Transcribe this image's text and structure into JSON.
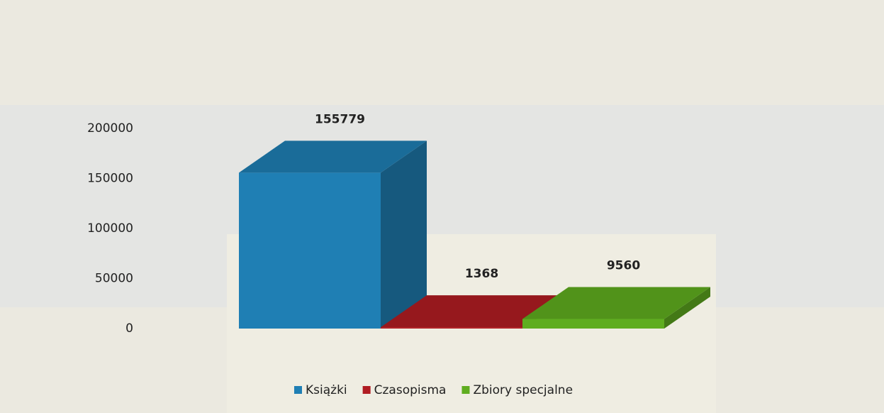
{
  "chart_data": {
    "type": "bar3d",
    "series": [
      {
        "name": "Książki",
        "color": "#1f7fb4",
        "values": [
          155779
        ]
      },
      {
        "name": "Czasopisma",
        "color": "#b01c22",
        "values": [
          1368
        ]
      },
      {
        "name": "Zbiory specjalne",
        "color": "#5fad1f",
        "values": [
          9560
        ]
      }
    ],
    "ylim": [
      0,
      200000
    ],
    "yticks": [
      0,
      50000,
      100000,
      150000,
      200000
    ],
    "grid": false,
    "legend": "bottom"
  }
}
